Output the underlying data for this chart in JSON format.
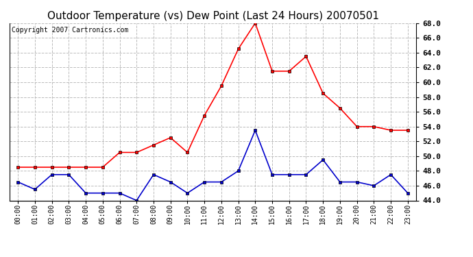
{
  "title": "Outdoor Temperature (vs) Dew Point (Last 24 Hours) 20070501",
  "copyright_text": "Copyright 2007 Cartronics.com",
  "x_labels": [
    "00:00",
    "01:00",
    "02:00",
    "03:00",
    "04:00",
    "05:00",
    "06:00",
    "07:00",
    "08:00",
    "09:00",
    "10:00",
    "11:00",
    "12:00",
    "13:00",
    "14:00",
    "15:00",
    "16:00",
    "17:00",
    "18:00",
    "19:00",
    "20:00",
    "21:00",
    "22:00",
    "23:00"
  ],
  "temp_data": [
    48.5,
    48.5,
    48.5,
    48.5,
    48.5,
    48.5,
    50.5,
    50.5,
    51.5,
    52.5,
    50.5,
    55.5,
    59.5,
    64.5,
    68.0,
    61.5,
    61.5,
    63.5,
    58.5,
    56.5,
    54.0,
    54.0,
    53.5,
    53.5
  ],
  "dew_data": [
    46.5,
    45.5,
    47.5,
    47.5,
    45.0,
    45.0,
    45.0,
    44.0,
    47.5,
    46.5,
    45.0,
    46.5,
    46.5,
    48.0,
    53.5,
    47.5,
    47.5,
    47.5,
    49.5,
    46.5,
    46.5,
    46.0,
    47.5,
    45.0
  ],
  "temp_color": "#ff0000",
  "dew_color": "#0000cc",
  "marker": "s",
  "marker_size": 3,
  "line_width": 1.2,
  "ylim_min": 44.0,
  "ylim_max": 68.0,
  "ytick_step": 2.0,
  "grid_color": "#bbbbbb",
  "grid_style": "--",
  "bg_color": "#ffffff",
  "plot_bg_color": "#ffffff",
  "title_fontsize": 11,
  "copyright_fontsize": 7
}
